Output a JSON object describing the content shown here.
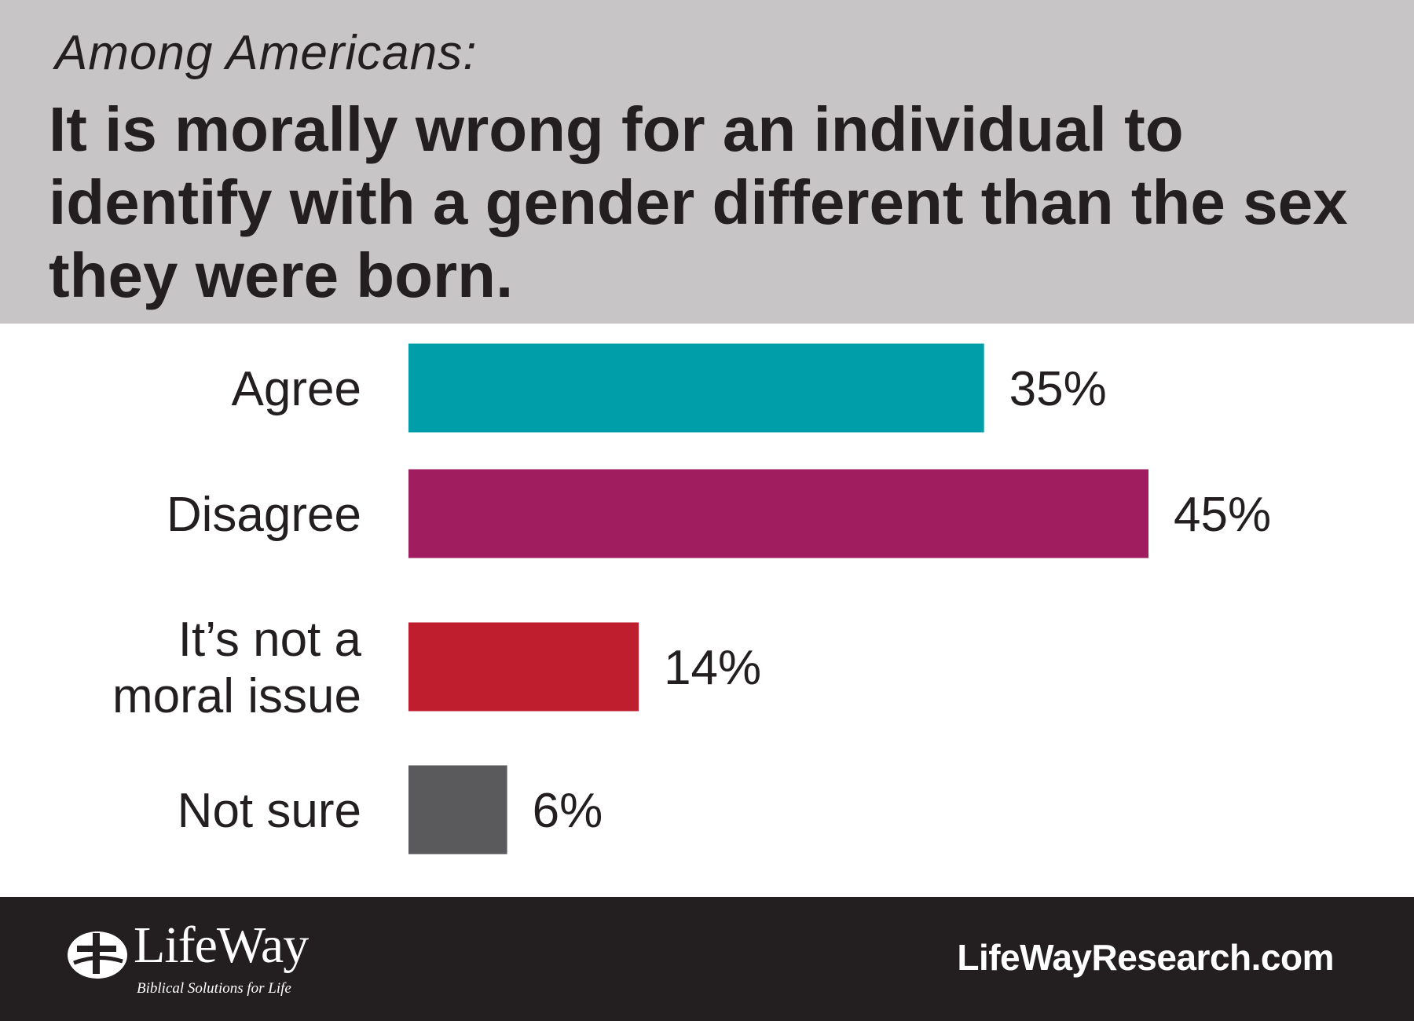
{
  "header": {
    "kicker": "Among Americans:",
    "headline": "It is morally wrong for an individual to identify with a gender different than the sex they were born."
  },
  "chart_data": {
    "type": "bar",
    "orientation": "horizontal",
    "categories": [
      "Agree",
      "Disagree",
      "It’s not a moral issue",
      "Not sure"
    ],
    "category_lines": [
      [
        "Agree"
      ],
      [
        "Disagree"
      ],
      [
        "It’s not a",
        "moral issue"
      ],
      [
        "Not sure"
      ]
    ],
    "values": [
      35,
      45,
      14,
      6
    ],
    "value_labels": [
      "35%",
      "45%",
      "14%",
      "6%"
    ],
    "colors": [
      "#009ea9",
      "#a01e60",
      "#be1e2d",
      "#5a5a5c"
    ],
    "xlim": [
      0,
      45
    ],
    "grid": false,
    "legend": "none"
  },
  "footer": {
    "logo_text": "LifeWay",
    "logo_tagline": "Biblical Solutions for Life",
    "url": "LifeWayResearch.com"
  },
  "colors": {
    "header_bg": "#c7c5c6",
    "footer_bg": "#231f20",
    "text": "#231f20"
  }
}
